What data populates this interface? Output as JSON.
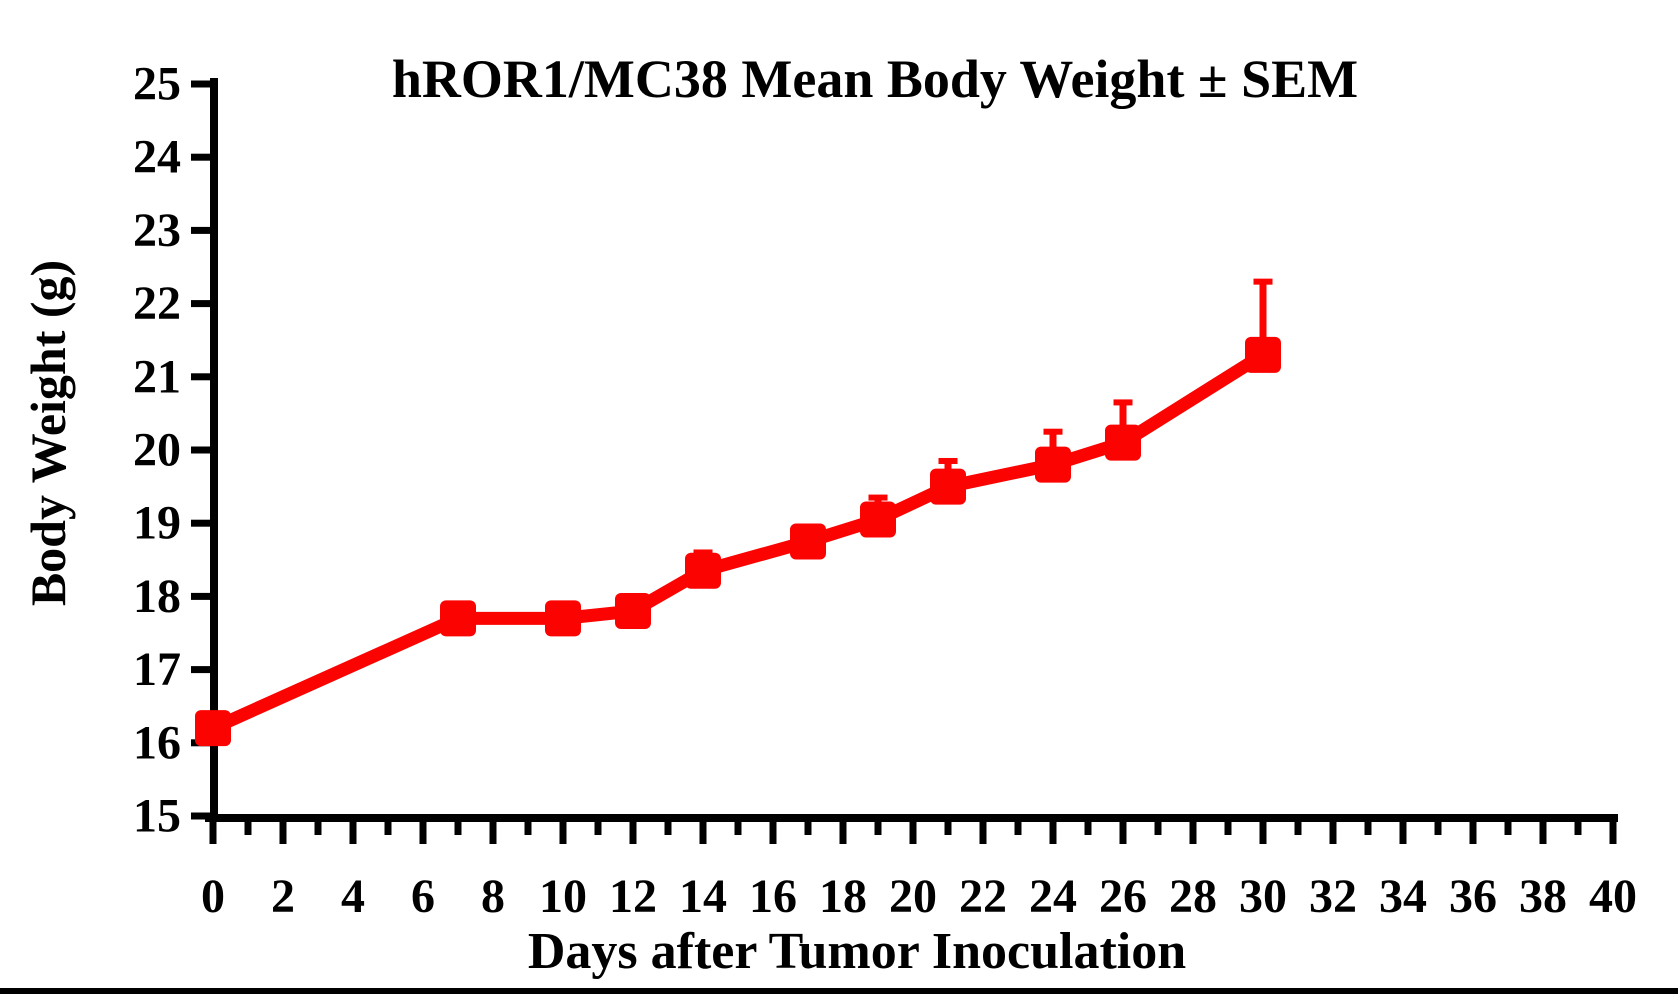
{
  "page": {
    "background": "#ffffff",
    "bottom_bar_color": "#000000"
  },
  "chart_data": {
    "type": "line",
    "title": "hROR1/MC38 Mean Body Weight ± SEM",
    "xlabel": "Days after Tumor Inoculation",
    "ylabel": "Body Weight (g)",
    "xlim": [
      0,
      40
    ],
    "ylim": [
      15,
      25
    ],
    "grid": false,
    "legend": "none",
    "marker": "square",
    "error_bars": "upper-SEM-only",
    "x_ticks": [
      0,
      2,
      4,
      6,
      8,
      10,
      12,
      14,
      16,
      18,
      20,
      22,
      24,
      26,
      28,
      30,
      32,
      34,
      36,
      38,
      40
    ],
    "x_minor_tick_step": 1,
    "y_ticks": [
      15,
      16,
      17,
      18,
      19,
      20,
      21,
      22,
      23,
      24,
      25
    ],
    "series": [
      {
        "name": "hROR1/MC38 mean body weight",
        "color": "#fb0300",
        "x": [
          0,
          7,
          10,
          12,
          14,
          17,
          19,
          21,
          24,
          26,
          30
        ],
        "y": [
          16.2,
          17.7,
          17.7,
          17.8,
          18.35,
          18.75,
          19.05,
          19.5,
          19.8,
          20.1,
          21.3
        ],
        "sem_upper": [
          0,
          0,
          0,
          0,
          0.25,
          0,
          0.3,
          0.35,
          0.45,
          0.55,
          1.0
        ]
      }
    ]
  }
}
